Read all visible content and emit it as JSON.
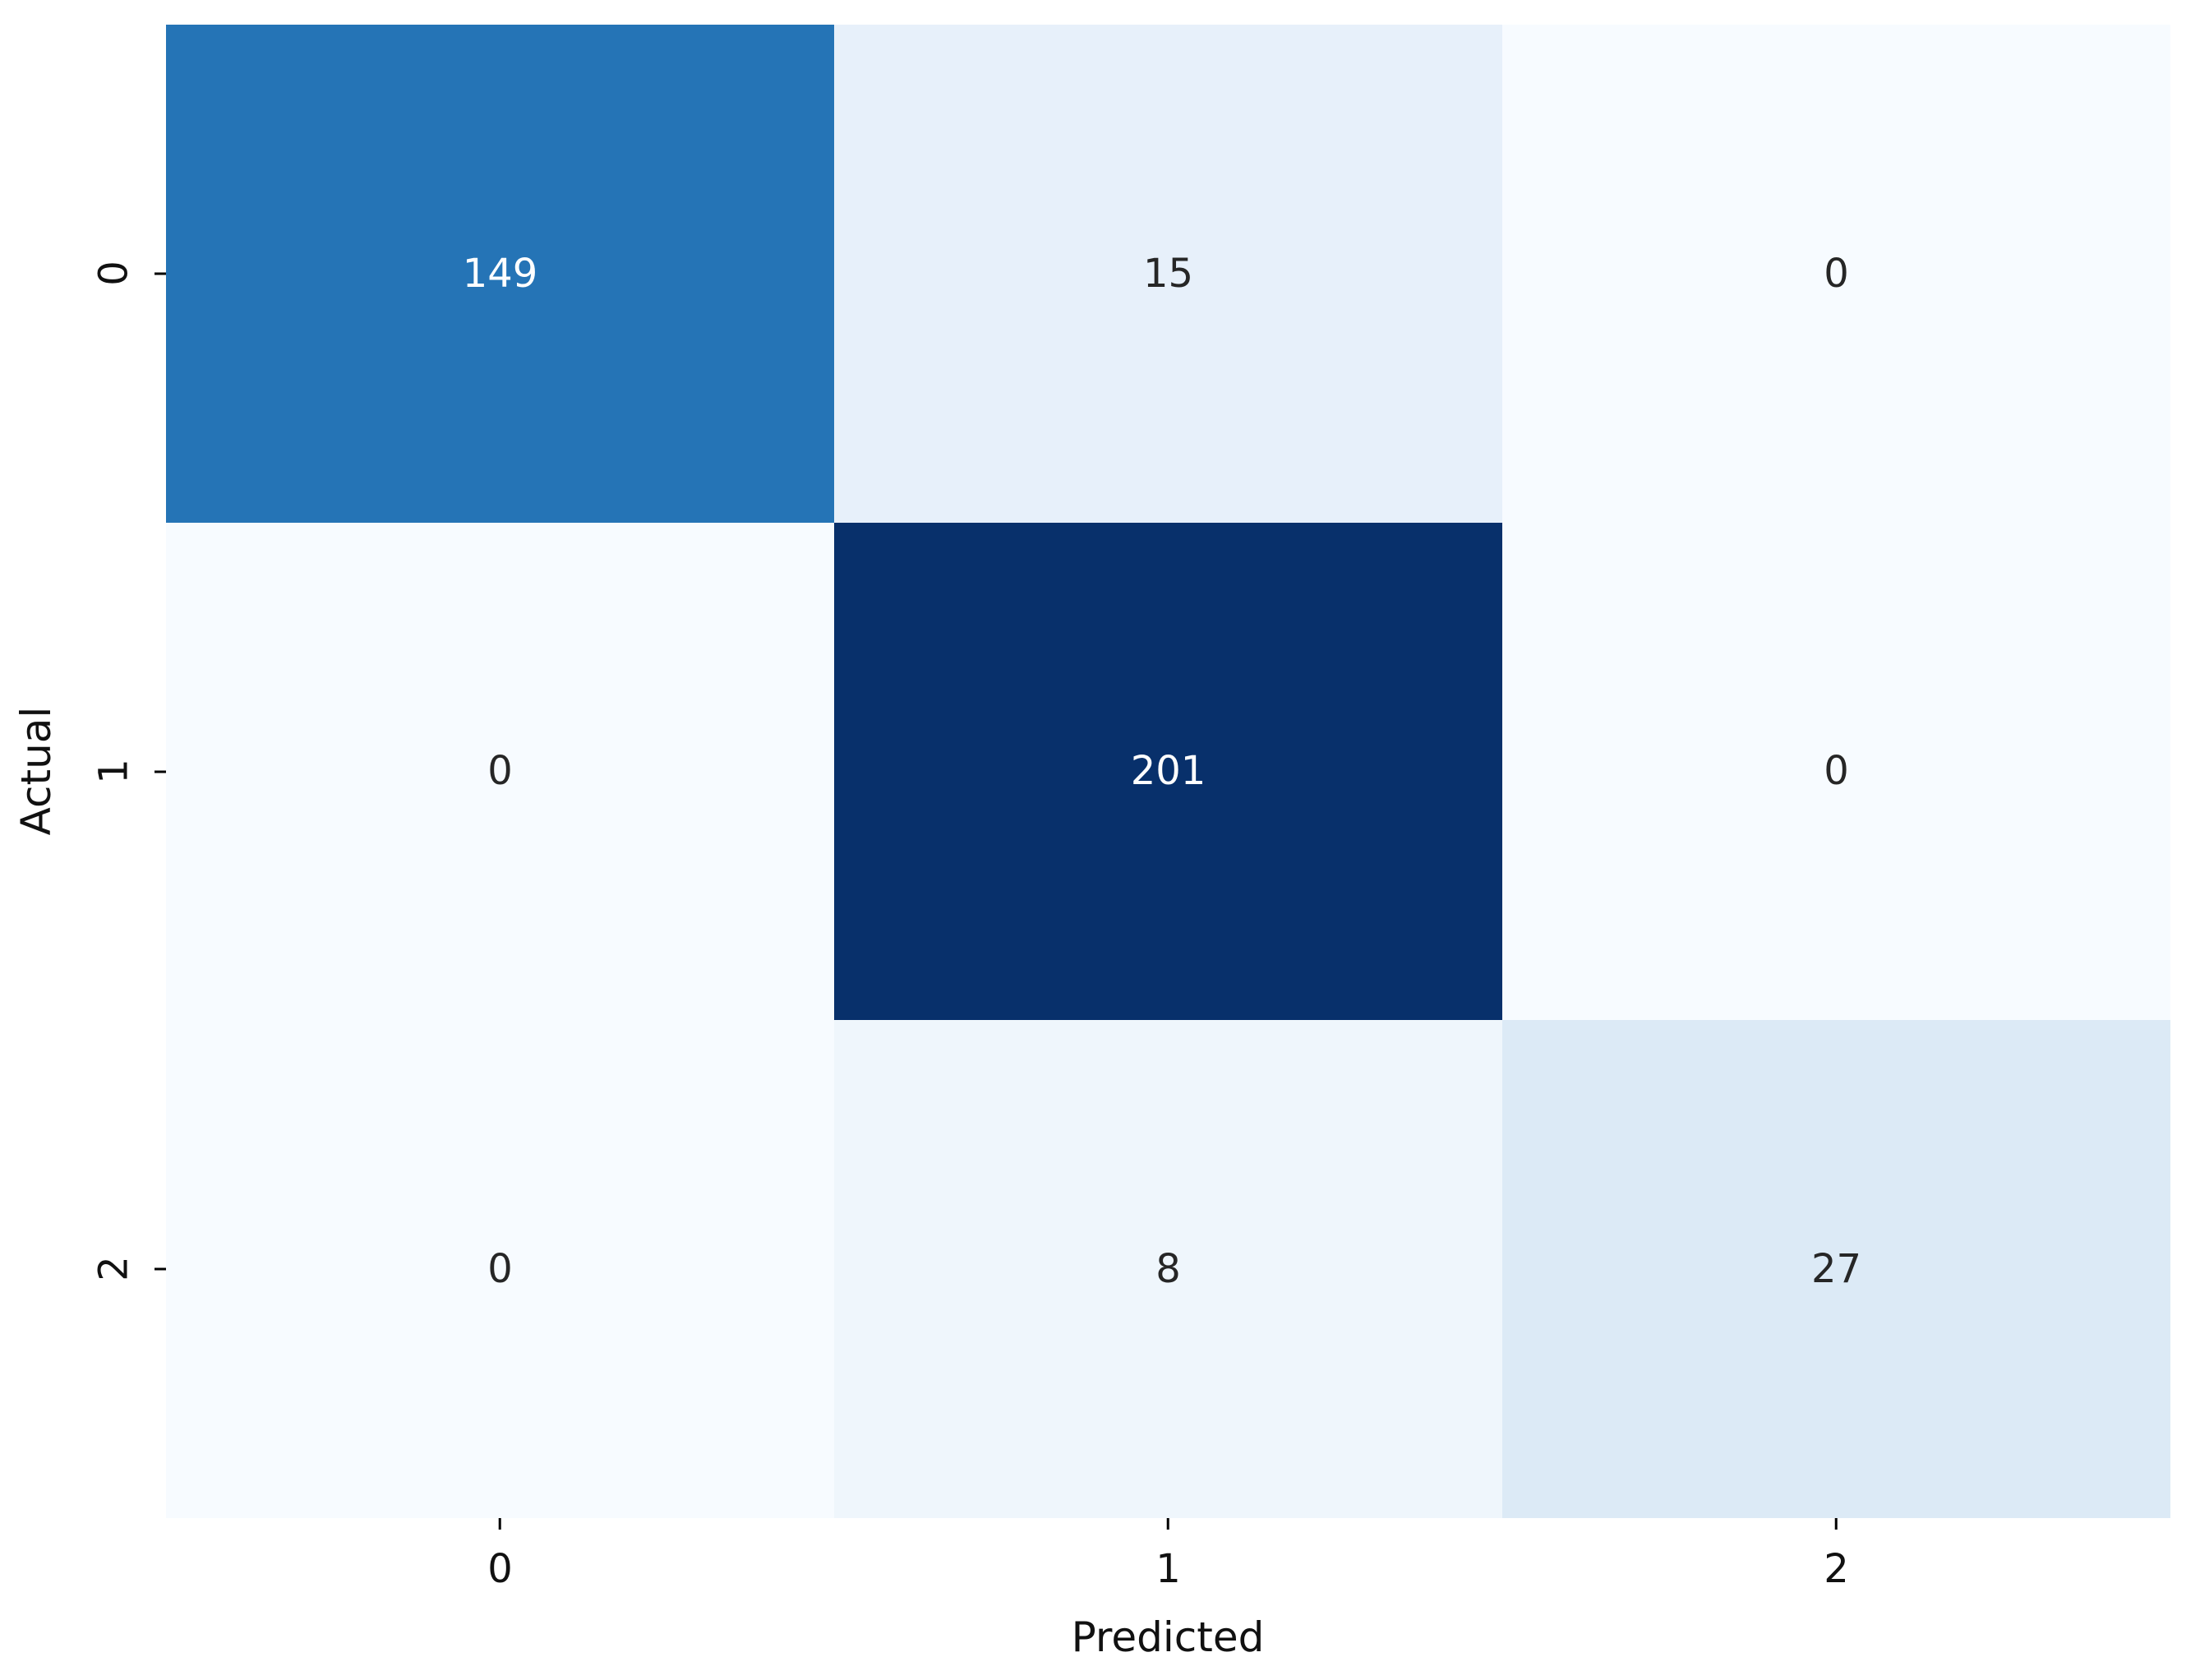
{
  "chart_data": {
    "type": "heatmap",
    "title": "",
    "xlabel": "Predicted",
    "ylabel": "Actual",
    "x_ticklabels": [
      "0",
      "1",
      "2"
    ],
    "y_ticklabels": [
      "0",
      "1",
      "2"
    ],
    "matrix": [
      [
        149,
        15,
        0
      ],
      [
        0,
        201,
        0
      ],
      [
        0,
        8,
        27
      ]
    ],
    "colormap": "Blues",
    "vmin": 0,
    "vmax": 201,
    "cell_colors": [
      [
        "#2574b6",
        "#e7f0fa",
        "#f7fbff"
      ],
      [
        "#f7fbff",
        "#08306b",
        "#f7fbff"
      ],
      [
        "#f7fbff",
        "#eff6fc",
        "#dceaf6"
      ]
    ],
    "cell_text_colors": [
      [
        "#ffffff",
        "#262626",
        "#262626"
      ],
      [
        "#262626",
        "#ffffff",
        "#262626"
      ],
      [
        "#262626",
        "#262626",
        "#262626"
      ]
    ],
    "grid": false,
    "legend_position": "none",
    "colorbar": false
  },
  "colors": {
    "background": "#ffffff",
    "tick": "#000000",
    "label_text": "#111111"
  }
}
